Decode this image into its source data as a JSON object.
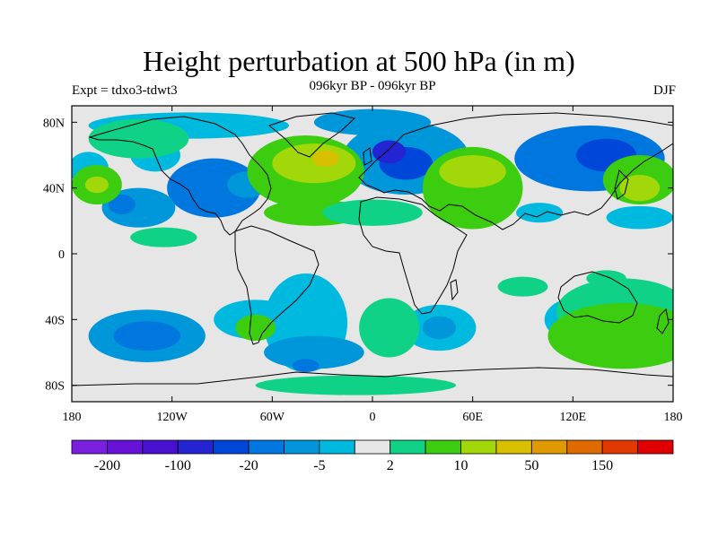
{
  "title": "Height perturbation at 500 hPa (in m)",
  "subtitle": "096kyr BP - 096kyr BP",
  "left_title": "Expt = tdxo3-tdwt3",
  "right_title": "DJF",
  "map": {
    "x_ticks": [
      {
        "lon": -180,
        "label": "180"
      },
      {
        "lon": -120,
        "label": "120W"
      },
      {
        "lon": -60,
        "label": "60W"
      },
      {
        "lon": 0,
        "label": "0"
      },
      {
        "lon": 60,
        "label": "60E"
      },
      {
        "lon": 120,
        "label": "120E"
      },
      {
        "lon": 180,
        "label": "180"
      }
    ],
    "y_ticks": [
      {
        "lat": 80,
        "label": "80N"
      },
      {
        "lat": 40,
        "label": "40N"
      },
      {
        "lat": 0,
        "label": "0"
      },
      {
        "lat": -40,
        "label": "40S"
      },
      {
        "lat": -80,
        "label": "80S"
      }
    ],
    "lon_range": [
      -180,
      180
    ],
    "lat_range": [
      -90,
      90
    ]
  },
  "colorbar": {
    "colors": [
      "#7a1ee0",
      "#6612d9",
      "#4a10d0",
      "#2424d2",
      "#0047d9",
      "#0077df",
      "#0097da",
      "#00b9de",
      "#e6e6e6",
      "#10d286",
      "#3ccc10",
      "#a2d80a",
      "#d6c000",
      "#de9a00",
      "#de6a00",
      "#e03800",
      "#e00000"
    ],
    "labels": [
      {
        "boundary": 1,
        "text": "-200"
      },
      {
        "boundary": 3,
        "text": "-100"
      },
      {
        "boundary": 5,
        "text": "-20"
      },
      {
        "boundary": 7,
        "text": "-5"
      },
      {
        "boundary": 9,
        "text": "2"
      },
      {
        "boundary": 11,
        "text": "10"
      },
      {
        "boundary": 13,
        "text": "50"
      },
      {
        "boundary": 15,
        "text": "150"
      }
    ]
  },
  "field_blobs": [
    {
      "lon": -95,
      "lat": 40,
      "rx": 28,
      "ry": 18,
      "c": 5
    },
    {
      "lon": -75,
      "lat": 42,
      "rx": 12,
      "ry": 8,
      "c": 6
    },
    {
      "lon": -130,
      "lat": 60,
      "rx": 15,
      "ry": 10,
      "c": 7
    },
    {
      "lon": -140,
      "lat": 28,
      "rx": 22,
      "ry": 12,
      "c": 6
    },
    {
      "lon": -150,
      "lat": 30,
      "rx": 8,
      "ry": 6,
      "c": 5
    },
    {
      "lon": -110,
      "lat": 78,
      "rx": 60,
      "ry": 8,
      "c": 7
    },
    {
      "lon": -170,
      "lat": 52,
      "rx": 12,
      "ry": 10,
      "c": 7
    },
    {
      "lon": 20,
      "lat": 58,
      "rx": 38,
      "ry": 22,
      "c": 6
    },
    {
      "lon": 20,
      "lat": 55,
      "rx": 16,
      "ry": 10,
      "c": 4
    },
    {
      "lon": 10,
      "lat": 62,
      "rx": 10,
      "ry": 7,
      "c": 3
    },
    {
      "lon": 0,
      "lat": 80,
      "rx": 35,
      "ry": 8,
      "c": 6
    },
    {
      "lon": 130,
      "lat": 58,
      "rx": 45,
      "ry": 20,
      "c": 5
    },
    {
      "lon": 140,
      "lat": 60,
      "rx": 18,
      "ry": 10,
      "c": 4
    },
    {
      "lon": 100,
      "lat": 25,
      "rx": 14,
      "ry": 6,
      "c": 7
    },
    {
      "lon": 160,
      "lat": 22,
      "rx": 20,
      "ry": 7,
      "c": 7
    },
    {
      "lon": -135,
      "lat": -50,
      "rx": 35,
      "ry": 16,
      "c": 6
    },
    {
      "lon": -135,
      "lat": -50,
      "rx": 20,
      "ry": 9,
      "c": 5
    },
    {
      "lon": -70,
      "lat": -40,
      "rx": 25,
      "ry": 12,
      "c": 7
    },
    {
      "lon": -40,
      "lat": -42,
      "rx": 25,
      "ry": 30,
      "c": 7
    },
    {
      "lon": -35,
      "lat": -60,
      "rx": 30,
      "ry": 10,
      "c": 6
    },
    {
      "lon": 40,
      "lat": -45,
      "rx": 22,
      "ry": 14,
      "c": 7
    },
    {
      "lon": 40,
      "lat": -45,
      "rx": 10,
      "ry": 7,
      "c": 6
    },
    {
      "lon": 125,
      "lat": -40,
      "rx": 22,
      "ry": 14,
      "c": 7
    },
    {
      "lon": 125,
      "lat": -40,
      "rx": 10,
      "ry": 6,
      "c": 6
    },
    {
      "lon": -40,
      "lat": -68,
      "rx": 8,
      "ry": 4,
      "c": 5
    },
    {
      "lon": -140,
      "lat": 70,
      "rx": 30,
      "ry": 12,
      "c": 9
    },
    {
      "lon": -165,
      "lat": 42,
      "rx": 15,
      "ry": 12,
      "c": 10
    },
    {
      "lon": -165,
      "lat": 42,
      "rx": 7,
      "ry": 5,
      "c": 11
    },
    {
      "lon": -125,
      "lat": 10,
      "rx": 20,
      "ry": 6,
      "c": 9
    },
    {
      "lon": -40,
      "lat": 50,
      "rx": 35,
      "ry": 22,
      "c": 10
    },
    {
      "lon": -35,
      "lat": 55,
      "rx": 25,
      "ry": 12,
      "c": 11
    },
    {
      "lon": -28,
      "lat": 58,
      "rx": 8,
      "ry": 5,
      "c": 12
    },
    {
      "lon": -35,
      "lat": 25,
      "rx": 30,
      "ry": 8,
      "c": 10
    },
    {
      "lon": 0,
      "lat": 25,
      "rx": 30,
      "ry": 8,
      "c": 9
    },
    {
      "lon": 60,
      "lat": 40,
      "rx": 30,
      "ry": 25,
      "c": 10
    },
    {
      "lon": 60,
      "lat": 50,
      "rx": 20,
      "ry": 10,
      "c": 11
    },
    {
      "lon": 160,
      "lat": 45,
      "rx": 22,
      "ry": 15,
      "c": 10
    },
    {
      "lon": 160,
      "lat": 40,
      "rx": 12,
      "ry": 8,
      "c": 11
    },
    {
      "lon": 150,
      "lat": -35,
      "rx": 40,
      "ry": 20,
      "c": 9
    },
    {
      "lon": 150,
      "lat": -50,
      "rx": 45,
      "ry": 20,
      "c": 10
    },
    {
      "lon": -70,
      "lat": -45,
      "rx": 12,
      "ry": 8,
      "c": 10
    },
    {
      "lon": 10,
      "lat": -45,
      "rx": 18,
      "ry": 18,
      "c": 9
    },
    {
      "lon": -10,
      "lat": -80,
      "rx": 60,
      "ry": 6,
      "c": 9
    },
    {
      "lon": 90,
      "lat": -20,
      "rx": 15,
      "ry": 6,
      "c": 9
    },
    {
      "lon": 140,
      "lat": -15,
      "rx": 12,
      "ry": 5,
      "c": 9
    }
  ]
}
